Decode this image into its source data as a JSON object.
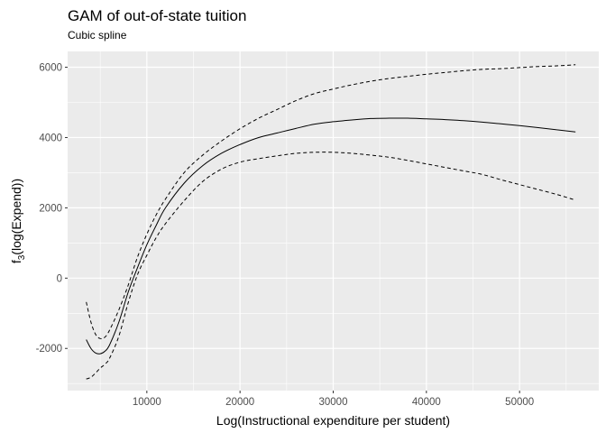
{
  "chart_data": {
    "type": "line",
    "title": "GAM of out-of-state tuition",
    "subtitle": "Cubic spline",
    "xlabel": "Log(Instructional expenditure per student)",
    "ylabel": {
      "prefix": "f",
      "subscript": "3",
      "suffix": "(log(Expend))"
    },
    "xlim": [
      1500,
      58500
    ],
    "ylim": [
      -3200,
      6450
    ],
    "x_ticks": [
      10000,
      20000,
      30000,
      40000,
      50000
    ],
    "x_tick_labels": [
      "10000",
      "20000",
      "30000",
      "40000",
      "50000"
    ],
    "x_minor_ticks": [
      5000,
      15000,
      25000,
      35000,
      45000,
      55000
    ],
    "y_ticks": [
      -2000,
      0,
      2000,
      4000,
      6000
    ],
    "y_tick_labels": [
      "-2000",
      "0",
      "2000",
      "4000",
      "6000"
    ],
    "y_minor_ticks": [
      -3000,
      -1000,
      1000,
      3000,
      5000
    ],
    "grid": true,
    "legend": "none",
    "colors": {
      "panel_background": "#ebebeb",
      "grid": "#ffffff",
      "line": "#000000"
    },
    "series": [
      {
        "style": "solid",
        "x": [
          3500,
          4000,
          4500,
          5000,
          5500,
          6000,
          7000,
          8000,
          9000,
          10000,
          11000,
          12000,
          14000,
          16000,
          18000,
          20000,
          22000,
          24000,
          26000,
          28000,
          30000,
          32000,
          34000,
          36000,
          38000,
          40000,
          42000,
          44000,
          46000,
          48000,
          50000,
          52000,
          54000,
          56000
        ],
        "y": [
          -1750,
          -2000,
          -2130,
          -2150,
          -2080,
          -1900,
          -1250,
          -400,
          300,
          950,
          1500,
          2000,
          2700,
          3200,
          3550,
          3800,
          4000,
          4130,
          4260,
          4380,
          4450,
          4500,
          4540,
          4550,
          4550,
          4530,
          4510,
          4480,
          4440,
          4390,
          4340,
          4280,
          4220,
          4160
        ]
      },
      {
        "style": "dashed",
        "x": [
          3500,
          4000,
          4500,
          5000,
          5500,
          6000,
          7000,
          8000,
          9000,
          10000,
          11000,
          12000,
          14000,
          16000,
          18000,
          20000,
          22000,
          24000,
          26000,
          28000,
          30000,
          32000,
          34000,
          36000,
          38000,
          40000,
          42000,
          44000,
          46000,
          48000,
          50000,
          52000,
          54000,
          56000
        ],
        "y": [
          -680,
          -1250,
          -1600,
          -1720,
          -1680,
          -1480,
          -900,
          -200,
          600,
          1250,
          1800,
          2250,
          3000,
          3500,
          3900,
          4250,
          4550,
          4800,
          5050,
          5250,
          5380,
          5500,
          5600,
          5680,
          5740,
          5800,
          5850,
          5900,
          5940,
          5960,
          5990,
          6020,
          6040,
          6070
        ]
      },
      {
        "style": "dashed",
        "x": [
          3500,
          4000,
          4500,
          5000,
          5500,
          6000,
          7000,
          8000,
          9000,
          10000,
          11000,
          12000,
          14000,
          16000,
          18000,
          20000,
          22000,
          24000,
          26000,
          28000,
          30000,
          32000,
          34000,
          36000,
          38000,
          40000,
          42000,
          44000,
          46000,
          48000,
          50000,
          52000,
          54000,
          56000
        ],
        "y": [
          -2870,
          -2820,
          -2700,
          -2560,
          -2450,
          -2280,
          -1650,
          -700,
          100,
          650,
          1150,
          1550,
          2200,
          2750,
          3100,
          3300,
          3400,
          3480,
          3550,
          3580,
          3580,
          3550,
          3500,
          3440,
          3350,
          3250,
          3150,
          3050,
          2950,
          2800,
          2660,
          2520,
          2380,
          2220
        ]
      }
    ]
  }
}
